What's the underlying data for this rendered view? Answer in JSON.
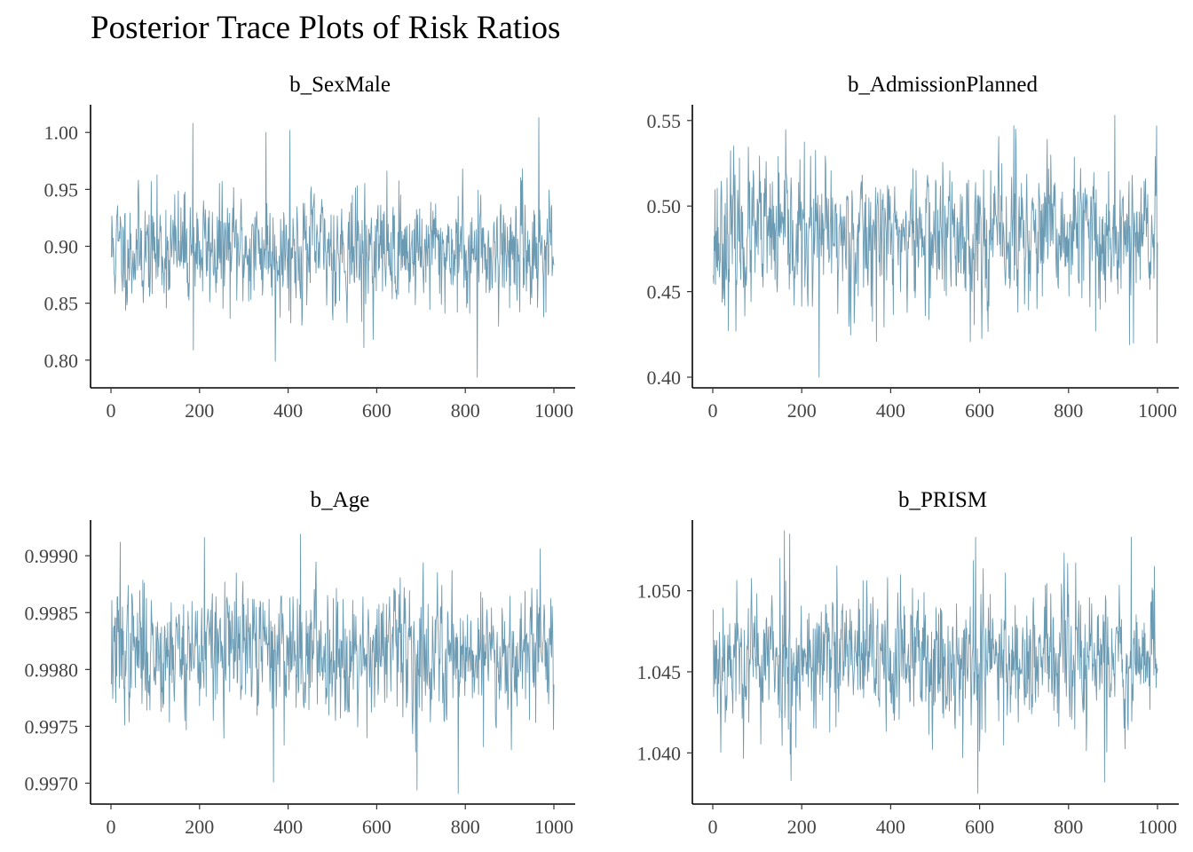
{
  "title": "Posterior Trace Plots of Risk Ratios",
  "colors": {
    "trace": "#6b9ab3",
    "axis": "#000000",
    "tick_text": "#444444"
  },
  "chart_data": [
    {
      "type": "line",
      "title": "b_SexMale",
      "xlim": [
        0,
        1000
      ],
      "ylim": [
        0.785,
        1.015
      ],
      "x_ticks": [
        0,
        200,
        400,
        600,
        800,
        1000
      ],
      "x_tick_labels": [
        "0",
        "200",
        "400",
        "600",
        "800",
        "1000"
      ],
      "y_ticks": [
        0.8,
        0.85,
        0.9,
        0.95,
        1.0
      ],
      "y_tick_labels": [
        "0.80",
        "0.85",
        "0.90",
        "0.95",
        "1.00"
      ],
      "n_draws": 1000,
      "mean": 0.897,
      "sd": 0.025,
      "seed": 11,
      "extremes": [
        [
          184,
          1.008
        ],
        [
          349,
          1.0
        ],
        [
          403,
          1.002
        ],
        [
          370,
          0.799
        ],
        [
          570,
          0.811
        ],
        [
          826,
          0.785
        ],
        [
          965,
          1.013
        ],
        [
          185,
          0.809
        ]
      ]
    },
    {
      "type": "line",
      "title": "b_AdmissionPlanned",
      "xlim": [
        0,
        1000
      ],
      "ylim": [
        0.4,
        0.553
      ],
      "x_ticks": [
        0,
        200,
        400,
        600,
        800,
        1000
      ],
      "x_tick_labels": [
        "0",
        "200",
        "400",
        "600",
        "800",
        "1000"
      ],
      "y_ticks": [
        0.4,
        0.45,
        0.5,
        0.55
      ],
      "y_tick_labels": [
        "0.40",
        "0.45",
        "0.50",
        "0.55"
      ],
      "n_draws": 1000,
      "mean": 0.482,
      "sd": 0.021,
      "seed": 23,
      "extremes": [
        [
          238,
          0.4
        ],
        [
          676,
          0.547
        ],
        [
          680,
          0.545
        ],
        [
          903,
          0.553
        ],
        [
          936,
          0.419
        ],
        [
          945,
          0.42
        ],
        [
          860,
          0.427
        ],
        [
          998,
          0.42
        ]
      ]
    },
    {
      "type": "line",
      "title": "b_Age",
      "xlim": [
        0,
        1000
      ],
      "ylim": [
        0.99691,
        0.99922
      ],
      "x_ticks": [
        0,
        200,
        400,
        600,
        800,
        1000
      ],
      "x_tick_labels": [
        "0",
        "200",
        "400",
        "600",
        "800",
        "1000"
      ],
      "y_ticks": [
        0.997,
        0.9975,
        0.998,
        0.9985,
        0.999
      ],
      "y_tick_labels": [
        "0.9970",
        "0.9975",
        "0.9980",
        "0.9985",
        "0.9990"
      ],
      "n_draws": 1000,
      "mean": 0.99817,
      "sd": 0.00028,
      "seed": 37,
      "extremes": [
        [
          210,
          0.99916
        ],
        [
          427,
          0.99919
        ],
        [
          366,
          0.99701
        ],
        [
          690,
          0.99694
        ],
        [
          783,
          0.99691
        ],
        [
          968,
          0.99906
        ],
        [
          20,
          0.99912
        ],
        [
          840,
          0.99732
        ]
      ]
    },
    {
      "type": "line",
      "title": "b_PRISM",
      "xlim": [
        0,
        1000
      ],
      "ylim": [
        1.0375,
        1.0537
      ],
      "x_ticks": [
        0,
        200,
        400,
        600,
        800,
        1000
      ],
      "x_tick_labels": [
        "0",
        "200",
        "400",
        "600",
        "800",
        "1000"
      ],
      "y_ticks": [
        1.04,
        1.045,
        1.05
      ],
      "y_tick_labels": [
        "1.040",
        "1.045",
        "1.050"
      ],
      "n_draws": 1000,
      "mean": 1.0458,
      "sd": 0.0022,
      "seed": 53,
      "extremes": [
        [
          160,
          1.0537
        ],
        [
          172,
          1.0535
        ],
        [
          175,
          1.0383
        ],
        [
          595,
          1.0375
        ],
        [
          590,
          1.0533
        ],
        [
          880,
          1.0382
        ],
        [
          940,
          1.0533
        ],
        [
          150,
          1.052
        ]
      ]
    }
  ]
}
